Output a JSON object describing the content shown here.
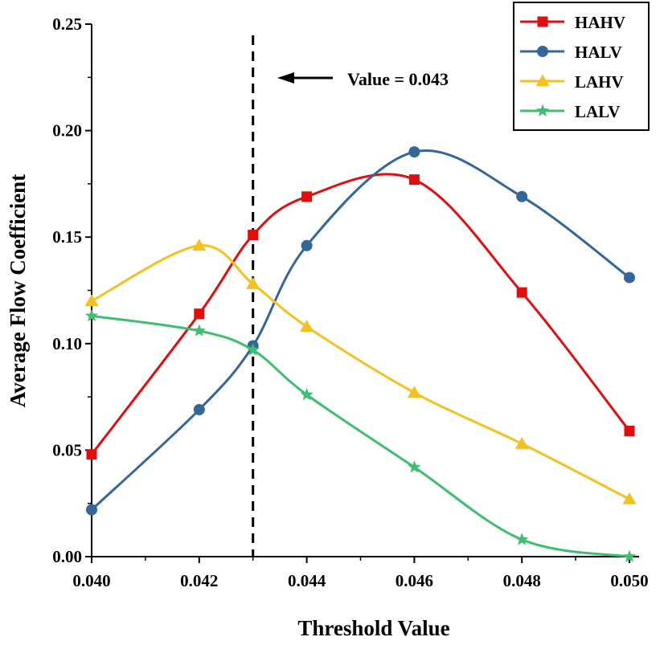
{
  "chart_data": {
    "type": "line",
    "title": "",
    "xlabel": "Threshold Value",
    "ylabel": "Average Flow Coefficient",
    "xlim": [
      0.04,
      0.05
    ],
    "ylim": [
      0.0,
      0.25
    ],
    "x_ticks": [
      "0.040",
      "0.042",
      "0.044",
      "0.046",
      "0.048",
      "0.050"
    ],
    "y_ticks": [
      "0.00",
      "0.05",
      "0.10",
      "0.15",
      "0.20",
      "0.25"
    ],
    "x": [
      0.04,
      0.042,
      0.043,
      0.044,
      0.046,
      0.048,
      0.05
    ],
    "series": [
      {
        "name": "HAHV",
        "color": "#e30d0d",
        "marker": "square",
        "values": [
          0.048,
          0.114,
          0.151,
          0.169,
          0.177,
          0.124,
          0.059
        ]
      },
      {
        "name": "HALV",
        "color": "#336699",
        "marker": "circle",
        "values": [
          0.022,
          0.069,
          0.099,
          0.146,
          0.19,
          0.169,
          0.131
        ]
      },
      {
        "name": "LAHV",
        "color": "#f5c11e",
        "marker": "triangle",
        "values": [
          0.12,
          0.146,
          0.128,
          0.108,
          0.077,
          0.053,
          0.027
        ]
      },
      {
        "name": "LALV",
        "color": "#3cbf6e",
        "marker": "star",
        "values": [
          0.113,
          0.106,
          0.097,
          0.076,
          0.042,
          0.008,
          0.0
        ]
      }
    ],
    "reference_line": {
      "x": 0.043,
      "style": "dashed",
      "label": "Value = 0.043"
    },
    "legend_position": "top-right",
    "grid": false
  }
}
